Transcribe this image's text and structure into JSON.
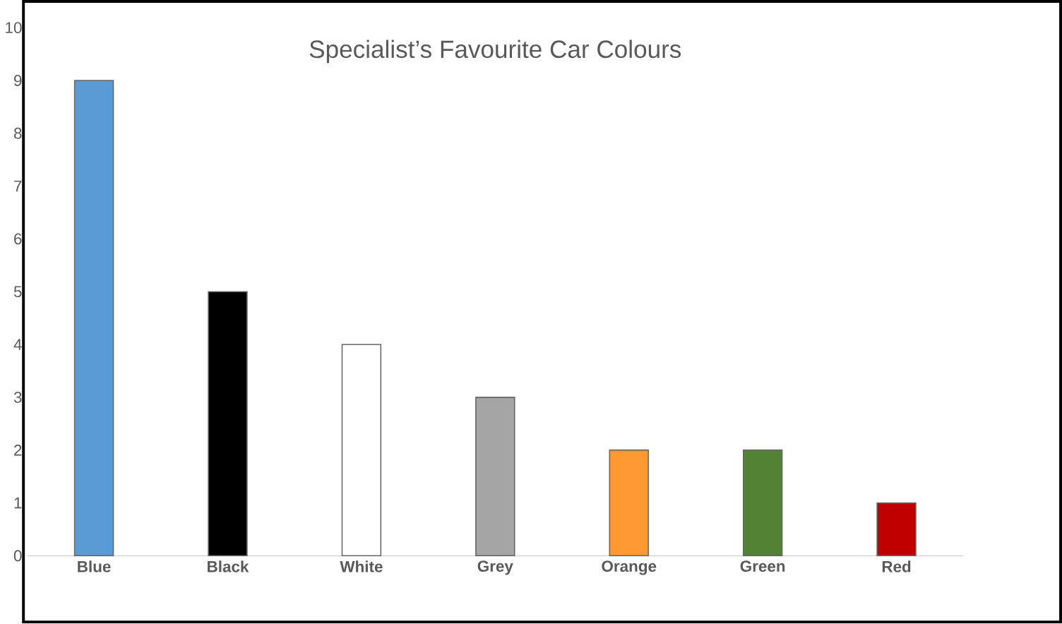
{
  "chart_data": {
    "type": "bar",
    "title": "Specialist’s Favourite Car Colours",
    "categories": [
      "Blue",
      "Black",
      "White",
      "Grey",
      "Orange",
      "Green",
      "Red"
    ],
    "values": [
      9,
      5,
      4,
      3,
      2,
      2,
      1
    ],
    "colors": [
      "#5b9bd5",
      "#000000",
      "#ffffff",
      "#a5a5a5",
      "#ff9933",
      "#548235",
      "#c00000"
    ],
    "ylim": [
      0,
      10
    ],
    "yticks": [
      0,
      1,
      2,
      3,
      4,
      5,
      6,
      7,
      8,
      9,
      10
    ]
  }
}
